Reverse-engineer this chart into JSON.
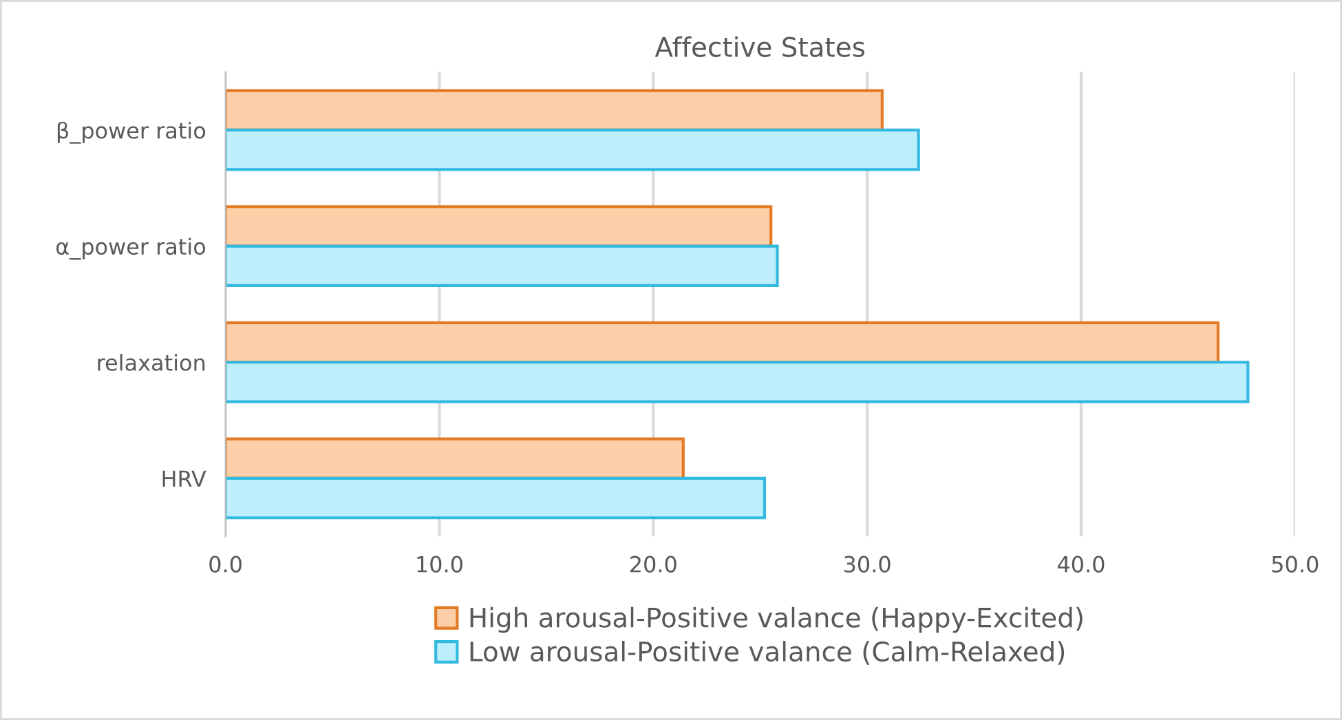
{
  "chart_data": {
    "type": "bar",
    "orientation": "horizontal",
    "title": "Affective States",
    "categories": [
      "β_power ratio",
      "α_power ratio",
      "relaxation",
      "HRV"
    ],
    "series": [
      {
        "name": "High arousal-Positive valance (Happy-Excited)",
        "color": "#fdcfa8",
        "values": [
          30.7,
          25.5,
          46.4,
          21.4
        ]
      },
      {
        "name": "Low arousal-Positive valance (Calm-Relaxed)",
        "color": "#bdeefc",
        "values": [
          32.4,
          25.8,
          47.8,
          25.2
        ]
      }
    ],
    "xlim": [
      0,
      50
    ],
    "xticks": [
      {
        "value": 0,
        "label": "0.0"
      },
      {
        "value": 10,
        "label": "10.0"
      },
      {
        "value": 20,
        "label": "20.0"
      },
      {
        "value": 30,
        "label": "30.0"
      },
      {
        "value": 40,
        "label": "40.0"
      },
      {
        "value": 50,
        "label": "50.0"
      }
    ],
    "grid": "x",
    "legend": "bottom"
  }
}
